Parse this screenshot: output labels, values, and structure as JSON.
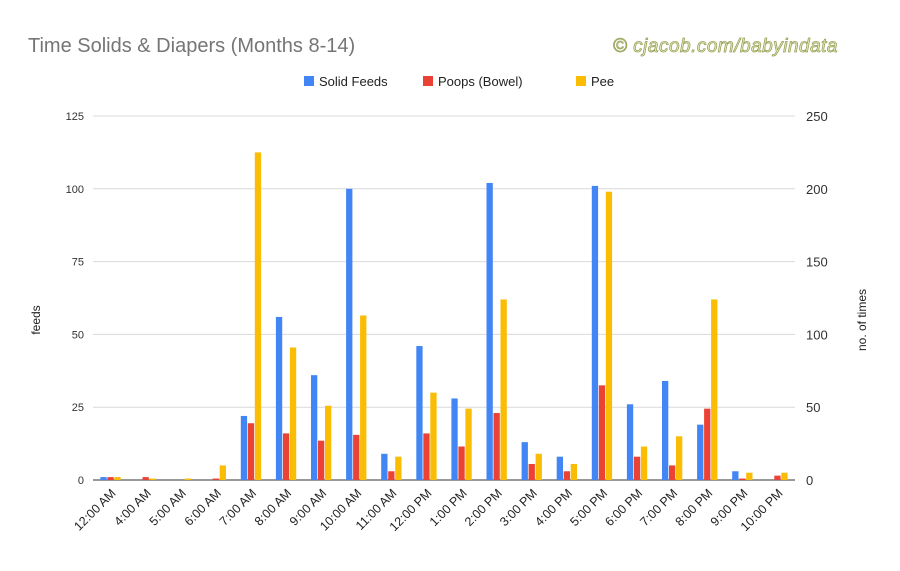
{
  "chart_data": {
    "type": "bar",
    "title": "Time Solids & Diapers (Months 8-14)",
    "watermark": "© cjacob.com/babyindata",
    "ylabel": "feeds",
    "y2label": "no. of times",
    "ylim": [
      0,
      125
    ],
    "y2lim": [
      0,
      250
    ],
    "yticks": [
      0,
      25,
      50,
      75,
      100,
      125
    ],
    "y2ticks": [
      0,
      50,
      100,
      150,
      200,
      250
    ],
    "grid": true,
    "legend_position": "top",
    "categories": [
      "12:00 AM",
      "4:00 AM",
      "5:00 AM",
      "6:00 AM",
      "7:00 AM",
      "8:00 AM",
      "9:00 AM",
      "10:00 AM",
      "11:00 AM",
      "12:00 PM",
      "1:00 PM",
      "2:00 PM",
      "3:00 PM",
      "4:00 PM",
      "5:00 PM",
      "6:00 PM",
      "7:00 PM",
      "8:00 PM",
      "9:00 PM",
      "10:00 PM"
    ],
    "series": [
      {
        "name": "Solid Feeds",
        "axis": "left",
        "color": "#4285f4",
        "values": [
          1,
          0,
          0,
          0,
          22,
          56,
          36,
          100,
          9,
          46,
          28,
          102,
          13,
          8,
          101,
          26,
          34,
          19,
          3,
          0
        ]
      },
      {
        "name": "Poops (Bowel)",
        "axis": "right",
        "color": "#ea4335",
        "values": [
          2,
          2,
          0,
          1,
          39,
          32,
          27,
          31,
          6,
          32,
          23,
          46,
          11,
          6,
          65,
          16,
          10,
          49,
          1,
          3
        ]
      },
      {
        "name": "Pee",
        "axis": "right",
        "color": "#fbbc04",
        "values": [
          2,
          1,
          1,
          10,
          225,
          91,
          51,
          113,
          16,
          60,
          49,
          124,
          18,
          11,
          198,
          23,
          30,
          124,
          5,
          5
        ]
      }
    ]
  }
}
